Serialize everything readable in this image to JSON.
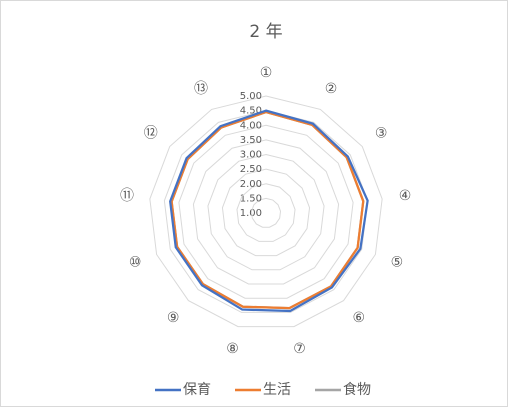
{
  "chart_data": {
    "type": "radar",
    "title": "2 年",
    "categories": [
      "①",
      "②",
      "③",
      "④",
      "⑤",
      "⑥",
      "⑦",
      "⑧",
      "⑨",
      "⑩",
      "⑪",
      "⑫",
      "⑬"
    ],
    "ylim": [
      1,
      5
    ],
    "yticks": [
      {
        "value": 1,
        "label": "1.00"
      },
      {
        "value": 1.5,
        "label": "1.50"
      },
      {
        "value": 2,
        "label": "2.00"
      },
      {
        "value": 2.5,
        "label": "2.50"
      },
      {
        "value": 3,
        "label": "3.00"
      },
      {
        "value": 3.5,
        "label": "3.50"
      },
      {
        "value": 4,
        "label": "4.00"
      },
      {
        "value": 4.5,
        "label": "4.50"
      },
      {
        "value": 5,
        "label": "5.00"
      }
    ],
    "grid": true,
    "legend": "bottom",
    "series": [
      {
        "name": "保育",
        "color": "#4472c4",
        "values": [
          4.5,
          4.45,
          4.4,
          4.5,
          4.45,
          4.4,
          4.45,
          4.4,
          4.3,
          4.3,
          4.3,
          4.3,
          4.35
        ]
      },
      {
        "name": "生活",
        "color": "#ed7d31",
        "values": [
          4.45,
          4.4,
          4.35,
          4.35,
          4.35,
          4.35,
          4.35,
          4.3,
          4.25,
          4.25,
          4.25,
          4.25,
          4.3
        ]
      },
      {
        "name": "食物",
        "color": "#a5a5a5",
        "values": [
          4.45,
          4.4,
          4.35,
          4.35,
          4.35,
          4.35,
          4.35,
          4.3,
          4.25,
          4.25,
          4.25,
          4.25,
          4.3
        ]
      }
    ]
  }
}
